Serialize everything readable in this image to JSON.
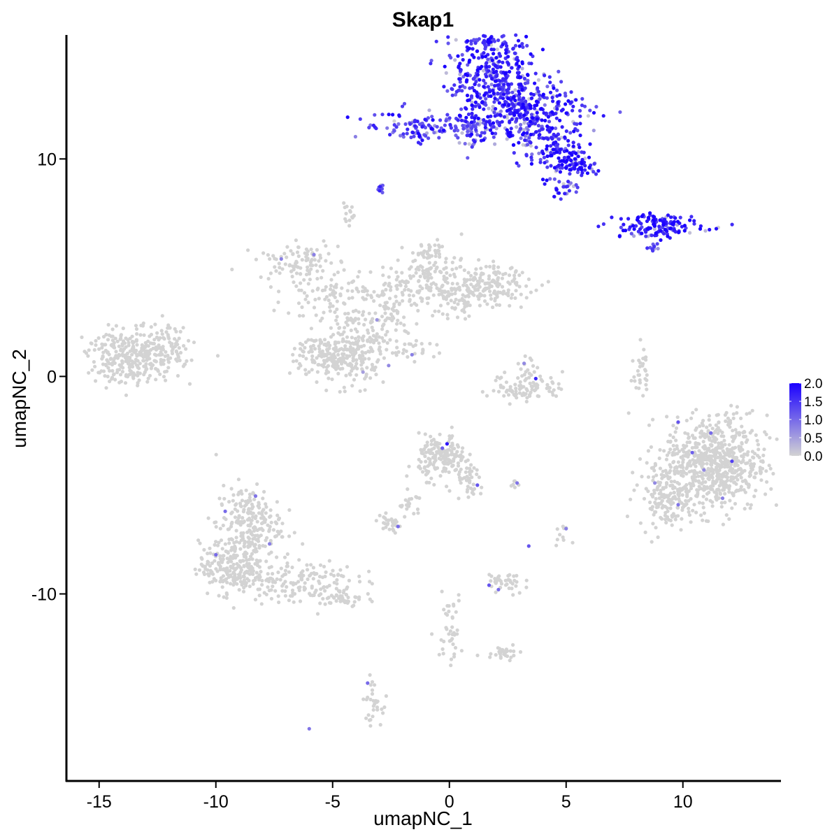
{
  "chart_data": {
    "type": "scatter",
    "title": "Skap1",
    "xlabel": "umapNC_1",
    "ylabel": "umapNC_2",
    "xlim": [
      -16.4,
      14.2
    ],
    "ylim": [
      -18.6,
      15.7
    ],
    "x_ticks": [
      -15,
      -10,
      -5,
      0,
      5,
      10
    ],
    "y_ticks": [
      -10,
      0,
      10
    ],
    "x_tick_labels": [
      "-15",
      "-10",
      "-5",
      "0",
      "5",
      "10"
    ],
    "y_tick_labels": [
      "-10",
      "0",
      "10"
    ],
    "color_scale": {
      "low_color": "#d3d3d3",
      "high_color": "#1a00ff",
      "min": 0,
      "max": 2.0,
      "breaks": [
        0,
        0.5,
        1.0,
        1.5,
        2.0
      ],
      "break_labels": [
        "0.0",
        "0.5",
        "1.0",
        "1.5",
        "2.0"
      ]
    },
    "clusters": [
      {
        "cx": 1.8,
        "cy": 14.1,
        "sx": 0.9,
        "sy": 1.2,
        "n": 420,
        "expr": 1.55
      },
      {
        "cx": 3.3,
        "cy": 12.2,
        "sx": 1.2,
        "sy": 0.7,
        "n": 300,
        "expr": 1.6
      },
      {
        "cx": -1.4,
        "cy": 11.5,
        "sx": 1.3,
        "sy": 0.35,
        "n": 110,
        "expr": 1.4
      },
      {
        "cx": 0.9,
        "cy": 11.3,
        "sx": 0.6,
        "sy": 0.3,
        "n": 60,
        "expr": 1.3
      },
      {
        "cx": 4.3,
        "cy": 10.6,
        "sx": 0.7,
        "sy": 0.6,
        "n": 130,
        "expr": 1.55
      },
      {
        "cx": 5.4,
        "cy": 9.8,
        "sx": 0.45,
        "sy": 0.35,
        "n": 70,
        "expr": 1.85
      },
      {
        "cx": 4.8,
        "cy": 8.8,
        "sx": 0.3,
        "sy": 0.3,
        "n": 30,
        "expr": 1.4
      },
      {
        "cx": -2.9,
        "cy": 8.6,
        "sx": 0.15,
        "sy": 0.15,
        "n": 8,
        "expr": 1.3
      },
      {
        "cx": 8.9,
        "cy": 6.9,
        "sx": 0.9,
        "sy": 0.25,
        "n": 140,
        "expr": 1.7
      },
      {
        "cx": 8.8,
        "cy": 6.0,
        "sx": 0.15,
        "sy": 0.2,
        "n": 10,
        "expr": 1.2
      },
      {
        "cx": -13.5,
        "cy": 0.9,
        "sx": 1.0,
        "sy": 0.6,
        "n": 320,
        "expr": 0
      },
      {
        "cx": -12.0,
        "cy": 1.5,
        "sx": 0.6,
        "sy": 0.5,
        "n": 50,
        "expr": 0
      },
      {
        "cx": -6.5,
        "cy": 5.3,
        "sx": 0.9,
        "sy": 0.4,
        "n": 90,
        "expr": 0
      },
      {
        "cx": -4.3,
        "cy": 7.5,
        "sx": 0.2,
        "sy": 0.2,
        "n": 15,
        "expr": 0
      },
      {
        "cx": -5.2,
        "cy": 3.8,
        "sx": 0.9,
        "sy": 0.6,
        "n": 80,
        "expr": 0
      },
      {
        "cx": -3.2,
        "cy": 3.0,
        "sx": 1.0,
        "sy": 0.8,
        "n": 110,
        "expr": 0
      },
      {
        "cx": -5.0,
        "cy": 1.0,
        "sx": 0.8,
        "sy": 0.6,
        "n": 160,
        "expr": 0
      },
      {
        "cx": -4.2,
        "cy": 1.0,
        "sx": 0.7,
        "sy": 0.7,
        "n": 140,
        "expr": 0
      },
      {
        "cx": -1.2,
        "cy": 4.4,
        "sx": 0.9,
        "sy": 0.5,
        "n": 110,
        "expr": 0
      },
      {
        "cx": -0.8,
        "cy": 5.5,
        "sx": 0.5,
        "sy": 0.4,
        "n": 50,
        "expr": 0
      },
      {
        "cx": 1.5,
        "cy": 4.2,
        "sx": 1.0,
        "sy": 0.45,
        "n": 170,
        "expr": 0
      },
      {
        "cx": 0.2,
        "cy": 3.5,
        "sx": 0.5,
        "sy": 0.4,
        "n": 50,
        "expr": 0
      },
      {
        "cx": -1.6,
        "cy": 1.2,
        "sx": 0.6,
        "sy": 0.3,
        "n": 30,
        "expr": 0
      },
      {
        "cx": 3.3,
        "cy": -0.5,
        "sx": 0.8,
        "sy": 0.3,
        "n": 90,
        "expr": 0
      },
      {
        "cx": 3.4,
        "cy": 0.4,
        "sx": 0.2,
        "sy": 0.3,
        "n": 15,
        "expr": 0
      },
      {
        "cx": 8.2,
        "cy": 0.2,
        "sx": 0.15,
        "sy": 0.6,
        "n": 30,
        "expr": 0
      },
      {
        "cx": 11.4,
        "cy": -4.0,
        "sx": 1.1,
        "sy": 1.1,
        "n": 700,
        "expr": 0
      },
      {
        "cx": 9.3,
        "cy": -5.5,
        "sx": 0.6,
        "sy": 0.7,
        "n": 150,
        "expr": 0
      },
      {
        "cx": -8.6,
        "cy": -6.8,
        "sx": 0.7,
        "sy": 0.9,
        "n": 220,
        "expr": 0
      },
      {
        "cx": -9.3,
        "cy": -8.8,
        "sx": 0.7,
        "sy": 0.6,
        "n": 220,
        "expr": 0
      },
      {
        "cx": -6.4,
        "cy": -9.4,
        "sx": 1.2,
        "sy": 0.5,
        "n": 150,
        "expr": 0
      },
      {
        "cx": -4.6,
        "cy": -10.2,
        "sx": 0.5,
        "sy": 0.25,
        "n": 40,
        "expr": 0
      },
      {
        "cx": -0.3,
        "cy": -3.7,
        "sx": 0.5,
        "sy": 0.5,
        "n": 170,
        "expr": 0
      },
      {
        "cx": 0.9,
        "cy": -4.9,
        "sx": 0.3,
        "sy": 0.4,
        "n": 40,
        "expr": 0
      },
      {
        "cx": -1.7,
        "cy": -5.9,
        "sx": 0.3,
        "sy": 0.4,
        "n": 20,
        "expr": 0
      },
      {
        "cx": -2.6,
        "cy": -6.8,
        "sx": 0.3,
        "sy": 0.2,
        "n": 30,
        "expr": 0
      },
      {
        "cx": 2.4,
        "cy": -9.5,
        "sx": 0.4,
        "sy": 0.3,
        "n": 40,
        "expr": 0
      },
      {
        "cx": 0.0,
        "cy": -11.6,
        "sx": 0.3,
        "sy": 0.8,
        "n": 40,
        "expr": 0
      },
      {
        "cx": 2.3,
        "cy": -12.6,
        "sx": 0.4,
        "sy": 0.2,
        "n": 30,
        "expr": 0
      },
      {
        "cx": -3.3,
        "cy": -15.0,
        "sx": 0.2,
        "sy": 0.5,
        "n": 30,
        "expr": 0
      },
      {
        "cx": 4.8,
        "cy": -7.3,
        "sx": 0.15,
        "sy": 0.2,
        "n": 10,
        "expr": 0
      },
      {
        "cx": 2.8,
        "cy": -5.0,
        "sx": 0.15,
        "sy": 0.1,
        "n": 6,
        "expr": 0
      },
      {
        "cx": 6.6,
        "cy": 16.4,
        "sx": 0.0,
        "sy": 0.0,
        "n": 0,
        "expr": 0
      }
    ],
    "scattered_points": [
      {
        "x": -7.2,
        "y": 5.4,
        "v": 0.8
      },
      {
        "x": -5.8,
        "y": 5.6,
        "v": 0.8
      },
      {
        "x": -3.1,
        "y": 2.6,
        "v": 0.6
      },
      {
        "x": -1.6,
        "y": 1.0,
        "v": 0.8
      },
      {
        "x": -3.7,
        "y": 0.2,
        "v": 0.5
      },
      {
        "x": 3.7,
        "y": -0.1,
        "v": 1.6
      },
      {
        "x": 3.2,
        "y": 0.6,
        "v": 0.7
      },
      {
        "x": -0.1,
        "y": -3.1,
        "v": 1.8
      },
      {
        "x": -0.3,
        "y": -3.3,
        "v": 1.1
      },
      {
        "x": 1.2,
        "y": -5.0,
        "v": 1.2
      },
      {
        "x": 2.9,
        "y": -4.9,
        "v": 0.9
      },
      {
        "x": -2.2,
        "y": -6.9,
        "v": 1.0
      },
      {
        "x": -7.7,
        "y": -7.7,
        "v": 0.8
      },
      {
        "x": -9.6,
        "y": -6.2,
        "v": 1.0
      },
      {
        "x": -10.0,
        "y": -8.2,
        "v": 1.0
      },
      {
        "x": -8.3,
        "y": -5.5,
        "v": 0.9
      },
      {
        "x": 1.7,
        "y": -9.6,
        "v": 1.2
      },
      {
        "x": 2.1,
        "y": -9.8,
        "v": 1.0
      },
      {
        "x": 3.4,
        "y": -7.8,
        "v": 1.2
      },
      {
        "x": 9.8,
        "y": -2.1,
        "v": 1.2
      },
      {
        "x": 11.2,
        "y": -2.6,
        "v": 1.0
      },
      {
        "x": 12.1,
        "y": -3.9,
        "v": 1.4
      },
      {
        "x": 10.9,
        "y": -4.3,
        "v": 0.7
      },
      {
        "x": 9.8,
        "y": -5.9,
        "v": 0.9
      },
      {
        "x": 11.7,
        "y": -5.6,
        "v": 0.8
      },
      {
        "x": 10.4,
        "y": -3.5,
        "v": 1.1
      },
      {
        "x": 8.8,
        "y": -4.9,
        "v": 0.7
      },
      {
        "x": -3.5,
        "y": -14.1,
        "v": 1.0
      },
      {
        "x": -6.0,
        "y": -16.2,
        "v": 0.9
      },
      {
        "x": 5.0,
        "y": -7.0,
        "v": 0.8
      },
      {
        "x": -2.6,
        "y": 0.5,
        "v": 0.7
      }
    ]
  }
}
